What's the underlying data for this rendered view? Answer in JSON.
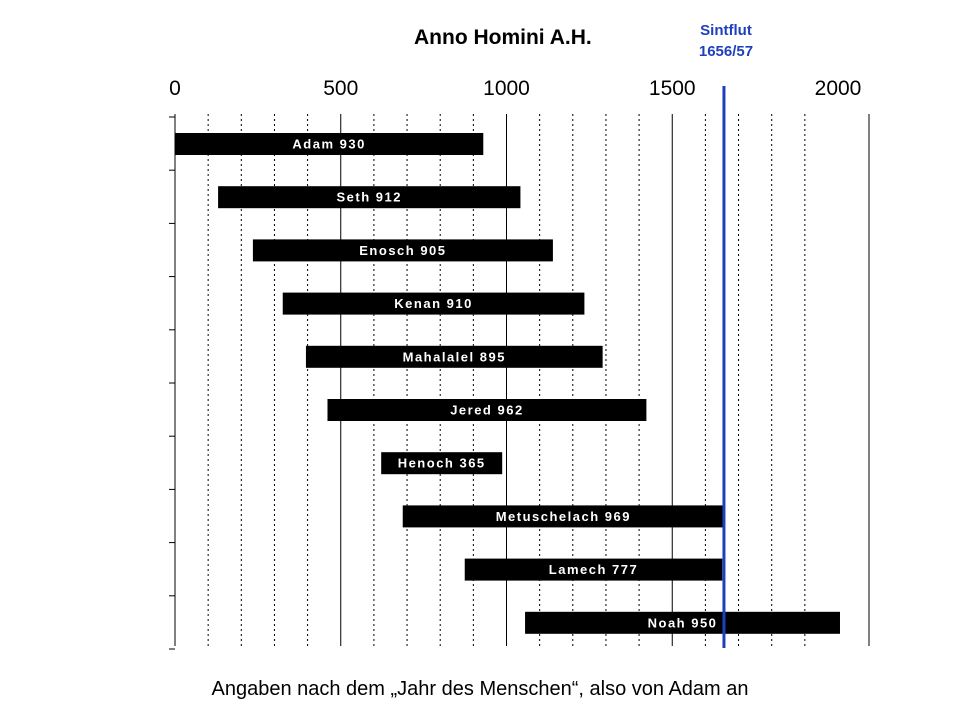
{
  "chart_data": {
    "type": "bar",
    "title": "Anno Homini A.H.",
    "xlim": [
      0,
      2000
    ],
    "x_ticks": [
      "0",
      "500",
      "1000",
      "1500",
      "2000"
    ],
    "grid": "vertical dotted every 100",
    "bars": [
      {
        "label": "Adam 930",
        "start": 0,
        "end": 930
      },
      {
        "label": "Seth 912",
        "start": 130,
        "end": 1042
      },
      {
        "label": "Enosch 905",
        "start": 235,
        "end": 1140
      },
      {
        "label": "Kenan 910",
        "start": 325,
        "end": 1235
      },
      {
        "label": "Mahalalel 895",
        "start": 395,
        "end": 1290
      },
      {
        "label": "Jered 962",
        "start": 460,
        "end": 1422
      },
      {
        "label": "Henoch 365",
        "start": 622,
        "end": 987
      },
      {
        "label": "Metuschelach 969",
        "start": 687,
        "end": 1656
      },
      {
        "label": "Lamech 777",
        "start": 874,
        "end": 1651
      },
      {
        "label": "Noah 950",
        "start": 1056,
        "end": 2006
      }
    ],
    "marker": {
      "line1": "Sintflut",
      "line2": "1656/57",
      "x": 1656,
      "color": "#1f3fbf"
    },
    "bar_color": "#000000",
    "label_color": "#ffffff"
  },
  "footer": "Angaben nach dem „Jahr des Menschen“, also von Adam an"
}
